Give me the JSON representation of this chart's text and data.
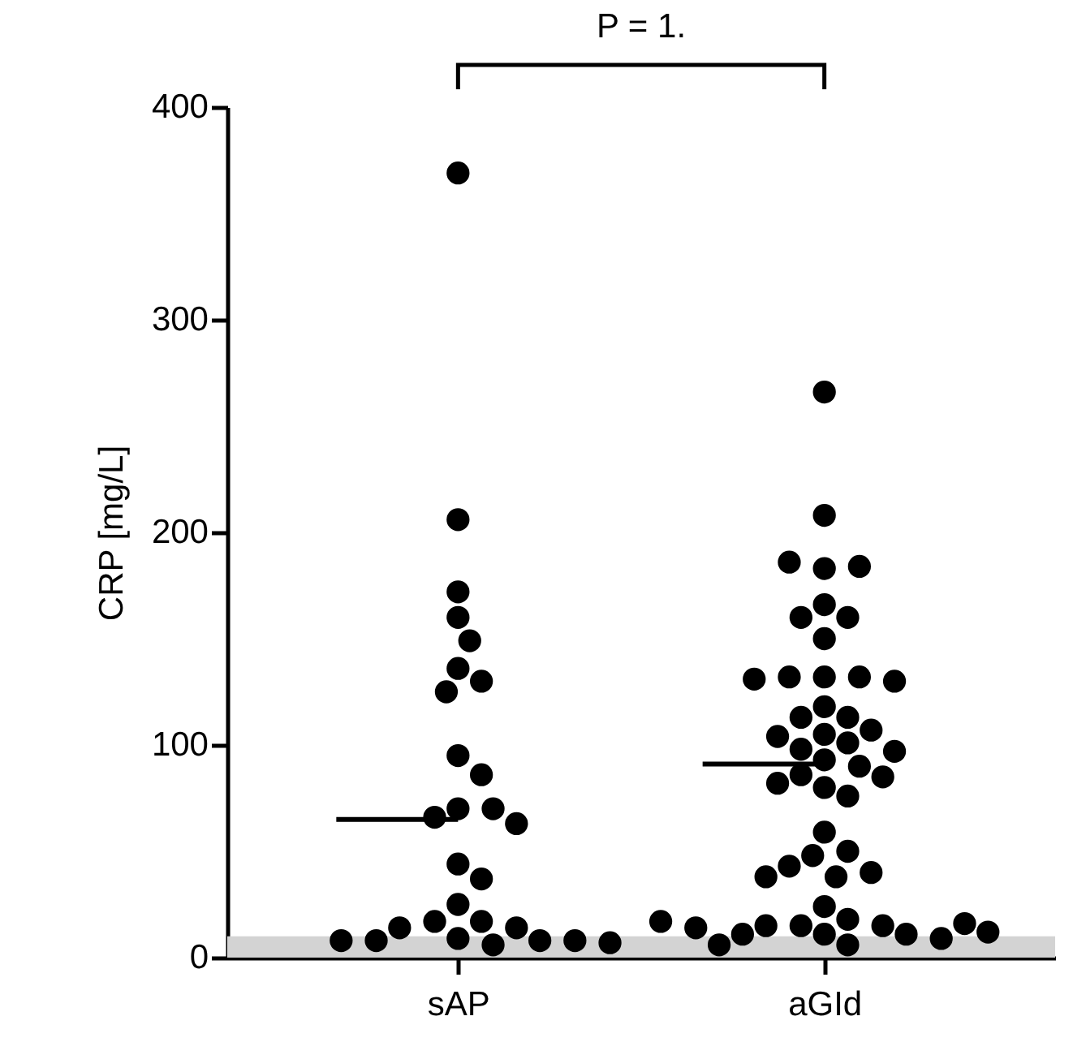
{
  "chart_data": {
    "type": "scatter",
    "ylabel": "CRP [mg/L]",
    "categories": [
      "sAP",
      "aGId"
    ],
    "ylim": [
      0,
      400
    ],
    "yticks": [
      0,
      100,
      200,
      300,
      400
    ],
    "grid": false,
    "marker": "circle",
    "series": [
      {
        "type": "scatter",
        "color": "#000000",
        "x": [
          "sAP",
          "sAP",
          "sAP",
          "sAP",
          "sAP",
          "sAP",
          "sAP",
          "sAP",
          "sAP",
          "sAP",
          "sAP",
          "sAP",
          "sAP",
          "sAP",
          "sAP",
          "sAP",
          "sAP",
          "sAP",
          "sAP",
          "sAP",
          "sAP",
          "sAP",
          "sAP",
          "sAP",
          "sAP",
          "sAP",
          "sAP",
          "sAP"
        ],
        "values": [
          369,
          206,
          172,
          160,
          149,
          136,
          130,
          125,
          95,
          86,
          70,
          70,
          66,
          63,
          44,
          37,
          25,
          17,
          17,
          14,
          14,
          9,
          8,
          8,
          8,
          8,
          6,
          7
        ]
      },
      {
        "type": "scatter",
        "color": "#000000",
        "x": [
          "aGId",
          "aGId",
          "aGId",
          "aGId",
          "aGId",
          "aGId",
          "aGId",
          "aGId",
          "aGId",
          "aGId",
          "aGId",
          "aGId",
          "aGId",
          "aGId",
          "aGId",
          "aGId",
          "aGId",
          "aGId",
          "aGId",
          "aGId",
          "aGId",
          "aGId",
          "aGId",
          "aGId",
          "aGId",
          "aGId",
          "aGId",
          "aGId",
          "aGId",
          "aGId",
          "aGId",
          "aGId",
          "aGId",
          "aGId",
          "aGId",
          "aGId",
          "aGId",
          "aGId",
          "aGId",
          "aGId",
          "aGId",
          "aGId",
          "aGId",
          "aGId",
          "aGId",
          "aGId",
          "aGId",
          "aGId",
          "aGId",
          "aGId",
          "aGId",
          "aGId"
        ],
        "values": [
          266,
          208,
          183,
          184,
          186,
          166,
          160,
          160,
          150,
          132,
          132,
          132,
          130,
          131,
          118,
          113,
          113,
          107,
          105,
          104,
          101,
          98,
          97,
          93,
          90,
          86,
          85,
          80,
          82,
          76,
          59,
          50,
          48,
          43,
          40,
          38,
          38,
          24,
          18,
          15,
          15,
          15,
          11,
          11,
          11,
          9,
          6,
          6,
          14,
          16,
          17,
          12
        ]
      }
    ],
    "ref_lines": [
      {
        "axis": "y",
        "value": 65,
        "color": "#000000"
      },
      {
        "axis": "y",
        "value": 91,
        "color": "#000000"
      }
    ],
    "bands": [
      {
        "axis": "y",
        "from": 0,
        "to": 10,
        "color": "#d3d3d3"
      }
    ],
    "annotations": [
      "P = 1."
    ]
  }
}
